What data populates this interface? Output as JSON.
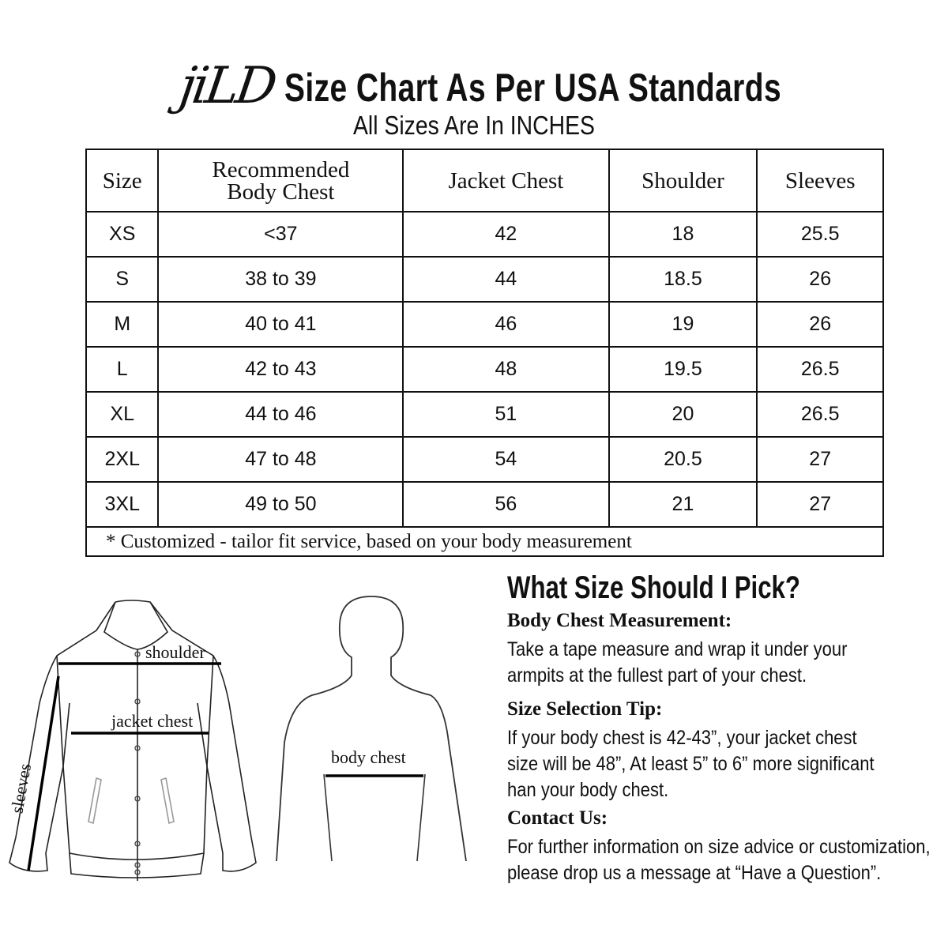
{
  "header": {
    "logo": "jiLD",
    "title": "Size Chart As Per USA Standards",
    "subtitle": "All Sizes Are In INCHES"
  },
  "table": {
    "columns": [
      "Size",
      "Recommended Body Chest",
      "Jacket Chest",
      "Shoulder",
      "Sleeves"
    ],
    "columns_line1": "Recommended",
    "columns_line2": "Body Chest",
    "rows": [
      [
        "XS",
        "<37",
        "42",
        "18",
        "25.5"
      ],
      [
        "S",
        "38 to 39",
        "44",
        "18.5",
        "26"
      ],
      [
        "M",
        "40 to 41",
        "46",
        "19",
        "26"
      ],
      [
        "L",
        "42 to 43",
        "48",
        "19.5",
        "26.5"
      ],
      [
        "XL",
        "44 to 46",
        "51",
        "20",
        "26.5"
      ],
      [
        "2XL",
        "47 to 48",
        "54",
        "20.5",
        "27"
      ],
      [
        "3XL",
        "49 to 50",
        "56",
        "21",
        "27"
      ]
    ],
    "footnote": "* Customized - tailor fit service,  based on your body measurement"
  },
  "diagram": {
    "shoulder": "shoulder",
    "jacket_chest": "jacket chest",
    "sleeves": "sleeves",
    "body_chest": "body chest"
  },
  "guide": {
    "heading": "What Size Should I Pick?",
    "sections": [
      {
        "title": "Body Chest Measurement:",
        "lines": [
          "Take a tape measure and wrap it under your",
          "armpits at the fullest part of your chest."
        ]
      },
      {
        "title": "Size Selection Tip:",
        "lines": [
          "If your body chest is 42-43”, your jacket chest",
          "size will be 48”, At least 5” to 6” more significant",
          "han your body chest."
        ]
      },
      {
        "title": "Contact Us:",
        "lines": [
          "For further information on size advice or customization,",
          "please drop us a message at “Have a Question”."
        ]
      }
    ]
  }
}
